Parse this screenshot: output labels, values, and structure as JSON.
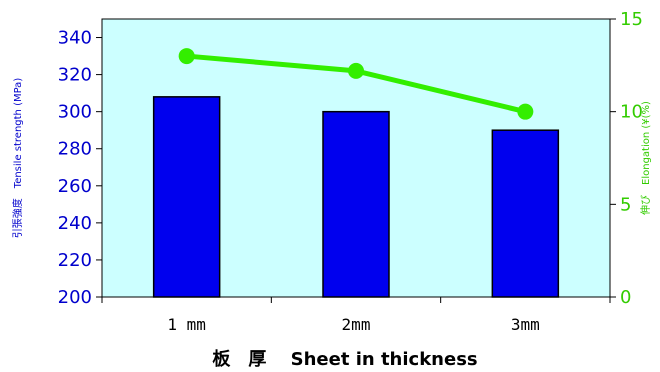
{
  "chart_data": {
    "type": "bar+line",
    "categories": [
      "1 mm",
      "2mm",
      "3mm"
    ],
    "series": [
      {
        "name": "Tensile strength",
        "type": "bar",
        "axis": "left",
        "values": [
          308,
          300,
          290
        ]
      },
      {
        "name": "Elongation",
        "type": "line",
        "axis": "right",
        "values": [
          13,
          12.2,
          10
        ]
      }
    ],
    "xlabel": "板　厚　 Sheet in thickness",
    "ylabel_left": "引張強度　Tensile strength (MPa)",
    "ylabel_right": "伸び　Elongation (¥(%)",
    "ylim_left": [
      200,
      350
    ],
    "yticks_left": [
      200,
      220,
      240,
      260,
      280,
      300,
      320,
      340
    ],
    "ylim_right": [
      0,
      15
    ],
    "yticks_right": [
      0,
      5,
      10,
      15
    ],
    "colors": {
      "plot_background": "#ccffff",
      "bar_fill": "#0000ee",
      "bar_edge": "#000000",
      "line": "#33ee00",
      "left_axis_text": "#0000cc",
      "right_axis_text": "#33cc00"
    }
  }
}
